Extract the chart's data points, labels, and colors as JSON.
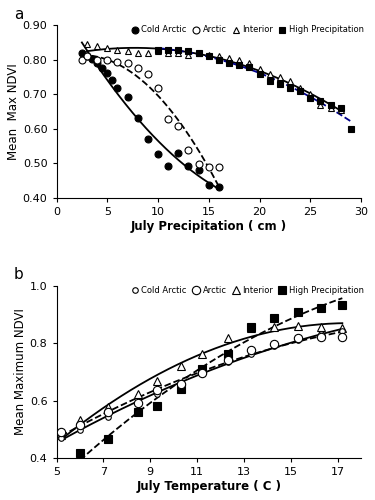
{
  "panel_a": {
    "xlabel": "July Precipitation ( cm )",
    "ylabel": "Mean  Max NDVI",
    "xlim": [
      0,
      30
    ],
    "ylim": [
      0.4,
      0.9
    ],
    "yticks": [
      0.4,
      0.5,
      0.6,
      0.7,
      0.8,
      0.9
    ],
    "xticks": [
      0,
      5,
      10,
      15,
      20,
      25,
      30
    ],
    "cold_arctic": {
      "x": [
        2.5,
        3.0,
        3.5,
        4.0,
        4.5,
        5.0,
        5.5,
        6.0,
        7.0,
        8.0,
        9.0,
        10.0,
        11.0,
        12.0,
        13.0,
        14.0,
        15.0,
        16.0
      ],
      "y": [
        0.82,
        0.812,
        0.802,
        0.792,
        0.778,
        0.762,
        0.742,
        0.718,
        0.692,
        0.632,
        0.572,
        0.528,
        0.492,
        0.53,
        0.492,
        0.482,
        0.437,
        0.432
      ],
      "marker": "o",
      "fillstyle": "full",
      "linestyle": "-",
      "linecolor": "black",
      "label": "Cold Arctic"
    },
    "arctic": {
      "x": [
        2.5,
        3.0,
        4.0,
        5.0,
        6.0,
        7.0,
        8.0,
        9.0,
        10.0,
        11.0,
        12.0,
        13.0,
        14.0,
        15.0,
        16.0
      ],
      "y": [
        0.8,
        0.81,
        0.8,
        0.8,
        0.795,
        0.79,
        0.778,
        0.758,
        0.718,
        0.628,
        0.608,
        0.538,
        0.498,
        0.488,
        0.488
      ],
      "marker": "o",
      "fillstyle": "none",
      "linestyle": "--",
      "linecolor": "black",
      "label": "Arctic"
    },
    "interior": {
      "x": [
        3.0,
        4.0,
        5.0,
        6.0,
        7.0,
        8.0,
        9.0,
        10.0,
        11.0,
        12.0,
        13.0,
        14.0,
        15.0,
        16.0,
        17.0,
        18.0,
        19.0,
        20.0,
        21.0,
        22.0,
        23.0,
        24.0,
        25.0,
        26.0,
        27.0,
        28.0
      ],
      "y": [
        0.845,
        0.84,
        0.835,
        0.83,
        0.825,
        0.82,
        0.82,
        0.825,
        0.82,
        0.82,
        0.815,
        0.82,
        0.815,
        0.81,
        0.805,
        0.8,
        0.79,
        0.775,
        0.76,
        0.75,
        0.74,
        0.72,
        0.7,
        0.67,
        0.66,
        0.655
      ],
      "marker": "^",
      "fillstyle": "none",
      "linestyle": "-",
      "linecolor": "black",
      "label": "Interior"
    },
    "high_precip": {
      "x": [
        10.0,
        11.0,
        12.0,
        13.0,
        14.0,
        15.0,
        16.0,
        17.0,
        18.0,
        19.0,
        20.0,
        21.0,
        22.0,
        23.0,
        24.0,
        25.0,
        26.0,
        27.0,
        28.0,
        29.0
      ],
      "y": [
        0.83,
        0.83,
        0.83,
        0.825,
        0.82,
        0.81,
        0.8,
        0.79,
        0.785,
        0.78,
        0.76,
        0.74,
        0.73,
        0.72,
        0.71,
        0.69,
        0.68,
        0.67,
        0.66,
        0.6
      ],
      "marker": "s",
      "fillstyle": "full",
      "linestyle": "--",
      "linecolor": "#00008B",
      "label": "High Precipitation"
    }
  },
  "panel_b": {
    "xlabel": "July Temperature ( C )",
    "ylabel": "Mean Maximum NDVI",
    "xlim": [
      5,
      18
    ],
    "ylim": [
      0.4,
      1.0
    ],
    "yticks": [
      0.4,
      0.6,
      0.8,
      1.0
    ],
    "xticks": [
      5,
      7,
      9,
      11,
      13,
      15,
      17
    ],
    "cold_arctic": {
      "x": [
        5.2,
        6.0,
        7.2,
        8.5,
        9.3,
        10.3,
        11.2,
        12.3,
        13.3,
        14.3,
        15.3,
        16.3,
        17.2
      ],
      "y": [
        0.47,
        0.5,
        0.545,
        0.59,
        0.625,
        0.66,
        0.695,
        0.735,
        0.762,
        0.792,
        0.812,
        0.832,
        0.842
      ],
      "marker": "o",
      "fillstyle": "none",
      "linestyle": "-",
      "linecolor": "black",
      "label": "Cold Arctic",
      "markersize": 4
    },
    "arctic": {
      "x": [
        5.2,
        6.0,
        7.2,
        8.5,
        9.3,
        10.3,
        11.2,
        12.3,
        13.3,
        14.3,
        15.3,
        16.3,
        17.2
      ],
      "y": [
        0.49,
        0.515,
        0.562,
        0.592,
        0.638,
        0.658,
        0.698,
        0.742,
        0.778,
        0.798,
        0.818,
        0.822,
        0.822
      ],
      "marker": "o",
      "fillstyle": "none",
      "linestyle": "--",
      "linecolor": "black",
      "label": "Arctic",
      "markersize": 6
    },
    "interior": {
      "x": [
        5.2,
        6.0,
        7.2,
        8.5,
        9.3,
        10.3,
        11.2,
        12.3,
        13.3,
        14.3,
        15.3,
        16.3,
        17.2
      ],
      "y": [
        0.48,
        0.532,
        0.578,
        0.622,
        0.668,
        0.722,
        0.762,
        0.818,
        0.852,
        0.858,
        0.862,
        0.858,
        0.852
      ],
      "marker": "^",
      "fillstyle": "none",
      "linestyle": "-",
      "linecolor": "black",
      "label": "Interior",
      "markersize": 6
    },
    "high_precip": {
      "x": [
        6.0,
        7.2,
        8.5,
        9.3,
        10.3,
        11.2,
        12.3,
        13.3,
        14.3,
        15.3,
        16.3,
        17.2
      ],
      "y": [
        0.42,
        0.468,
        0.562,
        0.582,
        0.642,
        0.712,
        0.762,
        0.858,
        0.888,
        0.908,
        0.922,
        0.932
      ],
      "marker": "s",
      "fillstyle": "full",
      "linestyle": "--",
      "linecolor": "black",
      "label": "High Precipitation",
      "markersize": 6
    }
  }
}
